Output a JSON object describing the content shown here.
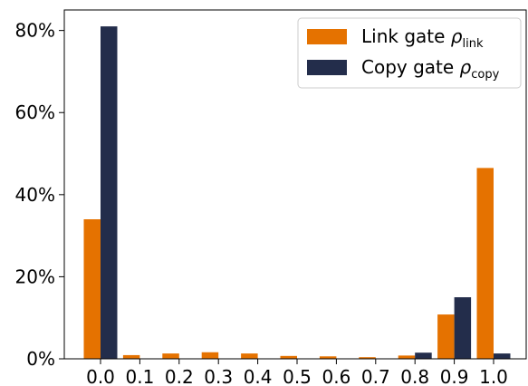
{
  "chart_data": {
    "type": "bar",
    "categories": [
      "0.0",
      "0.1",
      "0.2",
      "0.3",
      "0.4",
      "0.5",
      "0.6",
      "0.7",
      "0.8",
      "0.9",
      "1.0"
    ],
    "series": [
      {
        "name": "Link gate",
        "symbol": "ρ",
        "subscript": "link",
        "color": "#e57200",
        "values": [
          34.0,
          0.9,
          1.3,
          1.6,
          1.3,
          0.7,
          0.6,
          0.4,
          0.8,
          10.8,
          46.5
        ]
      },
      {
        "name": "Copy gate",
        "symbol": "ρ",
        "subscript": "copy",
        "color": "#232d4b",
        "values": [
          81.0,
          0.0,
          0.0,
          0.0,
          0.0,
          0.0,
          0.0,
          0.0,
          1.5,
          15.0,
          1.3
        ]
      }
    ],
    "ylim": [
      0,
      85
    ],
    "yticks": [
      0,
      20,
      40,
      60,
      80
    ],
    "ytick_labels": [
      "0%",
      "20%",
      "40%",
      "60%",
      "80%"
    ],
    "title": "",
    "xlabel": "",
    "ylabel": "",
    "grid": false,
    "legend_position": "top-right"
  }
}
